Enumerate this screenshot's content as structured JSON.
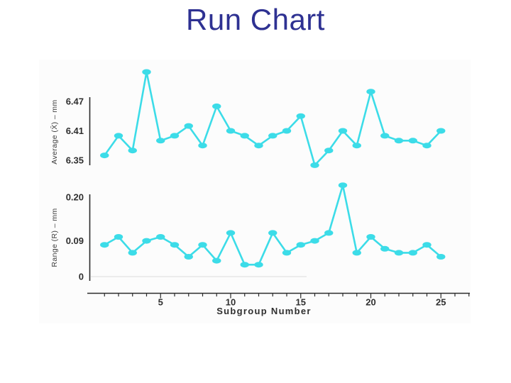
{
  "slide": {
    "title": "Run Chart",
    "title_color": "#2e3192",
    "background_color": "#ffffff"
  },
  "figure": {
    "accent_color": "#3cdce8",
    "axis_color": "#2b2b2b",
    "baseline_color": "#dcdcdc",
    "x_axis": {
      "label": "Subgroup Number",
      "major_ticks": [
        5,
        10,
        15,
        20,
        25
      ],
      "major_tick_labels": [
        "5",
        "10",
        "15",
        "20",
        "25"
      ],
      "minor_ticks_from": 1,
      "minor_ticks_to": 27
    }
  },
  "chart_data": [
    {
      "type": "line",
      "name": "average-run-chart",
      "title": "",
      "ylabel": "Average (X̄) – mm",
      "xlabel": "Subgroup Number",
      "legend": "none",
      "grid": false,
      "marker": "ellipse",
      "line_color": "#3cdce8",
      "x": [
        1,
        2,
        3,
        4,
        5,
        6,
        7,
        8,
        9,
        10,
        11,
        12,
        13,
        14,
        15,
        16,
        17,
        18,
        19,
        20,
        21,
        22,
        23,
        24,
        25
      ],
      "values": [
        6.36,
        6.4,
        6.37,
        6.53,
        6.39,
        6.4,
        6.42,
        6.38,
        6.46,
        6.41,
        6.4,
        6.38,
        6.4,
        6.41,
        6.44,
        6.34,
        6.37,
        6.41,
        6.38,
        6.49,
        6.4,
        6.39,
        6.39,
        6.38,
        6.41
      ],
      "yticks": [
        {
          "value": 6.35,
          "label": "6.35"
        },
        {
          "value": 6.41,
          "label": "6.41"
        },
        {
          "value": 6.47,
          "label": "6.47"
        }
      ],
      "ylim": [
        6.33,
        6.55
      ],
      "xlim": [
        0.5,
        27.5
      ]
    },
    {
      "type": "line",
      "name": "range-run-chart",
      "title": "",
      "ylabel": "Range (R) – mm",
      "xlabel": "Subgroup Number",
      "legend": "none",
      "grid": false,
      "marker": "ellipse",
      "line_color": "#3cdce8",
      "baseline_at_zero": true,
      "x": [
        1,
        2,
        3,
        4,
        5,
        6,
        7,
        8,
        9,
        10,
        11,
        12,
        13,
        14,
        15,
        16,
        17,
        18,
        19,
        20,
        21,
        22,
        23,
        24,
        25
      ],
      "values": [
        0.08,
        0.1,
        0.06,
        0.09,
        0.1,
        0.08,
        0.05,
        0.08,
        0.04,
        0.11,
        0.03,
        0.03,
        0.11,
        0.06,
        0.08,
        0.09,
        0.11,
        0.23,
        0.06,
        0.1,
        0.07,
        0.06,
        0.06,
        0.08,
        0.05
      ],
      "yticks": [
        {
          "value": 0,
          "label": "0"
        },
        {
          "value": 0.09,
          "label": "0.09"
        },
        {
          "value": 0.2,
          "label": "0.20"
        }
      ],
      "ylim": [
        0,
        0.25
      ],
      "xlim": [
        0.5,
        27.5
      ]
    }
  ]
}
